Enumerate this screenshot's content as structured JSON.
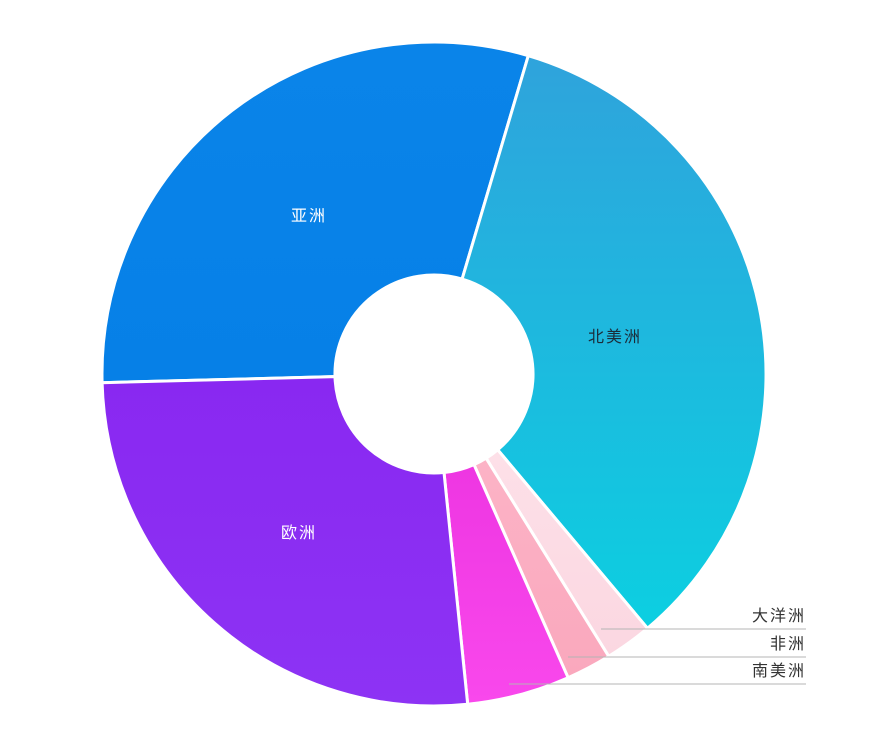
{
  "chart_data": {
    "type": "pie",
    "subtype": "donut",
    "title": "",
    "legend_position": "none",
    "background_color": "#ffffff",
    "separator_color": "#ffffff",
    "leader_line_color": "#b4b4b4",
    "inner_radius_frac": 0.3,
    "start_angle_deg": 268.5,
    "direction": "clockwise",
    "values_estimated_from_arc_angles": true,
    "unit": "percent",
    "categories": [
      "亚洲",
      "北美洲",
      "大洋洲",
      "非洲",
      "南美洲",
      "欧洲"
    ],
    "slices": [
      {
        "label": "亚洲",
        "value": 30.0,
        "color_top": "#0a84e9",
        "color_bottom": "#0680e7",
        "label_placement": "inside",
        "label_color": "#ffffff"
      },
      {
        "label": "北美洲",
        "value": 34.3,
        "color_top": "#2fa3dc",
        "color_bottom": "#0ccfe1",
        "label_placement": "inside",
        "label_color": "#1c2b38"
      },
      {
        "label": "大洋洲",
        "value": 2.3,
        "color_top": "#fde0e8",
        "color_bottom": "#fbd7e1",
        "label_placement": "outside",
        "label_color": "#333333"
      },
      {
        "label": "非洲",
        "value": 2.2,
        "color_top": "#fcb3c6",
        "color_bottom": "#faa8bd",
        "label_placement": "outside",
        "label_color": "#333333"
      },
      {
        "label": "南美洲",
        "value": 5.0,
        "color_top": "#ee36e2",
        "color_bottom": "#f948ec",
        "label_placement": "outside",
        "label_color": "#333333"
      },
      {
        "label": "欧洲",
        "value": 26.2,
        "color_top": "#8928f1",
        "color_bottom": "#8d33f4",
        "label_placement": "inside",
        "label_color": "#ffffff"
      }
    ]
  }
}
